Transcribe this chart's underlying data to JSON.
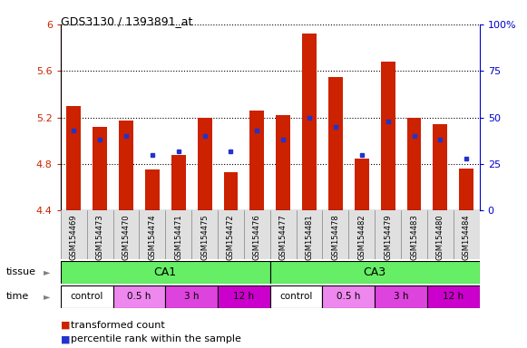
{
  "title": "GDS3130 / 1393891_at",
  "samples": [
    "GSM154469",
    "GSM154473",
    "GSM154470",
    "GSM154474",
    "GSM154471",
    "GSM154475",
    "GSM154472",
    "GSM154476",
    "GSM154477",
    "GSM154481",
    "GSM154478",
    "GSM154482",
    "GSM154479",
    "GSM154483",
    "GSM154480",
    "GSM154484"
  ],
  "red_values": [
    5.3,
    5.12,
    5.17,
    4.75,
    4.88,
    5.2,
    4.73,
    5.26,
    5.22,
    5.92,
    5.55,
    4.85,
    5.68,
    5.2,
    5.14,
    4.76
  ],
  "blue_values_pct": [
    43,
    38,
    40,
    30,
    32,
    40,
    32,
    43,
    38,
    50,
    45,
    30,
    48,
    40,
    38,
    28
  ],
  "ymin": 4.4,
  "ymax": 6.0,
  "yticks_red": [
    4.4,
    4.8,
    5.2,
    5.6,
    6.0
  ],
  "yticks_blue": [
    0,
    25,
    50,
    75,
    100
  ],
  "tissue_color": "#66ee66",
  "time_colors_map": {
    "control": "#ffffff",
    "0.5 h": "#ee88ee",
    "3 h": "#dd44dd",
    "12 h": "#cc00cc"
  },
  "time_blocks": [
    [
      "control",
      0,
      2
    ],
    [
      "0.5 h",
      2,
      4
    ],
    [
      "3 h",
      4,
      6
    ],
    [
      "12 h",
      6,
      8
    ],
    [
      "control",
      8,
      10
    ],
    [
      "0.5 h",
      10,
      12
    ],
    [
      "3 h",
      12,
      14
    ],
    [
      "12 h",
      14,
      16
    ]
  ],
  "bar_color": "#cc2200",
  "blue_color": "#2233cc",
  "legend_red": "transformed count",
  "legend_blue": "percentile rank within the sample",
  "background_color": "#ffffff"
}
